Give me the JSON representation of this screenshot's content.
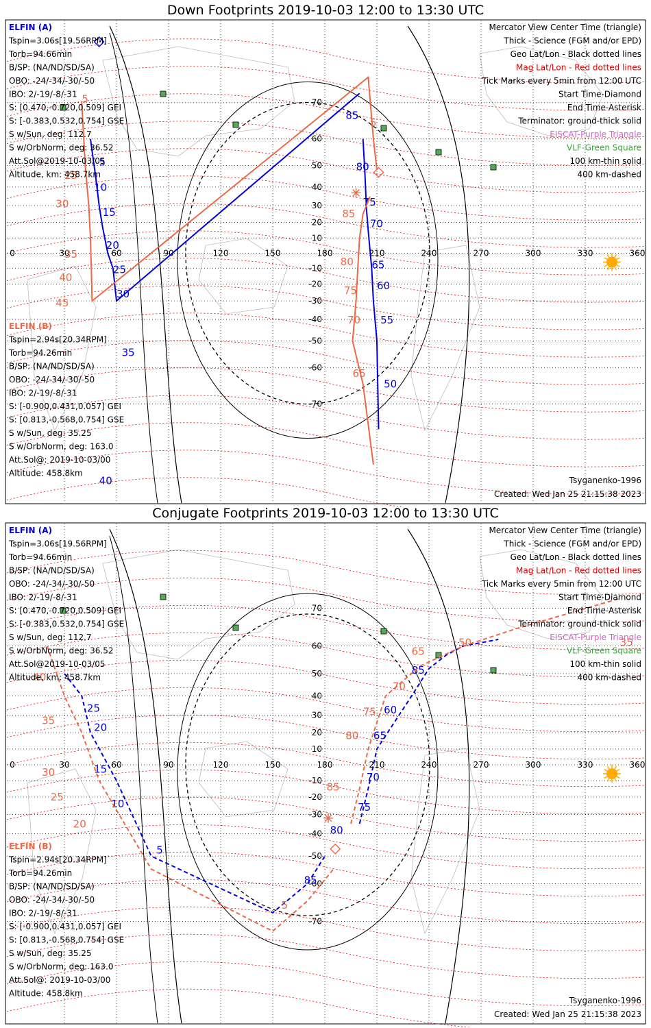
{
  "colors": {
    "a_blue": "#0000dd",
    "b_red": "#ee6644",
    "mag_red": "#dd0000",
    "eiscat": "#cc66cc",
    "vlf": "#33aa33",
    "sun": "#ffaa00"
  },
  "common": {
    "lon_ticks": [
      "0",
      "30",
      "60",
      "90",
      "120",
      "150",
      "180",
      "210",
      "240",
      "270",
      "300",
      "330",
      "360"
    ],
    "lat_ticks": [
      "70",
      "60",
      "50",
      "40",
      "30",
      "20",
      "10",
      "-10",
      "-20",
      "-30",
      "-40",
      "-50",
      "-60",
      "-70"
    ],
    "legend": [
      "Mercator View Center Time (triangle)",
      "Thick - Science (FGM and/or EPD)",
      "Geo Lat/Lon - Black dotted lines",
      "Mag Lat/Lon - Red dotted lines",
      "Tick Marks every 5min from 12:00 UTC",
      "Start Time-Diamond",
      "End Time-Asterisk",
      "Terminator: ground-thick solid",
      "EISCAT-Purple Triangle",
      "VLF-Green Square",
      "100 km-thin solid",
      "400 km-dashed"
    ],
    "a_block": [
      "ELFIN (A)",
      "Tspin=3.06s[19.56RPM]",
      "Torb=94.66min",
      "B/SP: (NA/ND/SD/SA)",
      "OBO: -24/-34/-30/-50",
      "IBO: 2/-19/-8/-31",
      "S: [0.470,-0.720,0.509] GEI",
      "S: [-0.383,0.532,0.754] GSE",
      "S w/Sun, deg: 112.7",
      "S w/OrbNorm, deg: 36.52",
      "Att.Sol@2019-10-03/05",
      "Altitude, km: 458.7km"
    ],
    "b_block": [
      "ELFIN (B)",
      "Tspin=2.94s[20.34RPM]",
      "Torb=94.26min",
      "B/SP: (NA/ND/SD/SA)",
      "OBO: -24/-34/-30/-50",
      "IBO: 2/-19/-8/-31",
      "S: [-0.900,0.431,0.057] GEI",
      "S: [0.813,-0.568,0.754] GSE",
      "S w/Sun, deg: 35.25",
      "S w/OrbNorm, deg: 163.0",
      "Att.Sol@: 2019-10-03/00",
      "Altitude: 458.8km"
    ],
    "model": "Tsyganenko-1996",
    "created": "Created: Wed Jan 25 21:15:38 2023"
  },
  "chart_data": [
    {
      "type": "scatter",
      "title": "Down Footprints 2019-10-03 12:00 to 13:30 UTC",
      "xlim": [
        0,
        360
      ],
      "ylim": [
        -80,
        80
      ],
      "series": [
        {
          "name": "ELFIN (A)",
          "color": "#0000dd",
          "lon": [
            45,
            48,
            50,
            52,
            55,
            58,
            60,
            200,
            202,
            203,
            204,
            205,
            207,
            208,
            210,
            211
          ],
          "lat": [
            60,
            45,
            30,
            17,
            0,
            -10,
            -30,
            72,
            60,
            48,
            28,
            15,
            -10,
            -30,
            -50,
            -75
          ],
          "ticks": [
            {
              "t": "5",
              "lon": 50,
              "lat": 50
            },
            {
              "t": "10",
              "lon": 47,
              "lat": 38
            },
            {
              "t": "15",
              "lon": 52,
              "lat": 24
            },
            {
              "t": "20",
              "lon": 54,
              "lat": 3
            },
            {
              "t": "25",
              "lon": 58,
              "lat": -13
            },
            {
              "t": "30",
              "lon": 60,
              "lat": -28
            },
            {
              "t": "35",
              "lon": 63,
              "lat": -56
            },
            {
              "t": "40",
              "lon": 50,
              "lat": -82
            },
            {
              "t": "85",
              "lon": 192,
              "lat": 66
            },
            {
              "t": "80",
              "lon": 198,
              "lat": 48
            },
            {
              "t": "75",
              "lon": 202,
              "lat": 30
            },
            {
              "t": "70",
              "lon": 206,
              "lat": 17
            },
            {
              "t": "65",
              "lon": 207,
              "lat": -10
            },
            {
              "t": "60",
              "lon": 210,
              "lat": -23
            },
            {
              "t": "55",
              "lon": 212,
              "lat": -42
            },
            {
              "t": "50",
              "lon": 214,
              "lat": -66
            }
          ]
        },
        {
          "name": "ELFIN (B)",
          "color": "#ee6644",
          "lon": [
            40,
            42,
            44,
            45,
            46,
            205,
            208,
            210,
            206,
            202,
            200,
            199,
            198,
            196,
            202,
            208
          ],
          "lat": [
            70,
            50,
            30,
            10,
            -30,
            75,
            60,
            48,
            35,
            25,
            10,
            -10,
            -30,
            -50,
            -65,
            -80
          ],
          "ticks": [
            {
              "t": "5",
              "lon": 40,
              "lat": 70
            },
            {
              "t": "25",
              "lon": 30,
              "lat": 44
            },
            {
              "t": "30",
              "lon": 25,
              "lat": 29
            },
            {
              "t": "35",
              "lon": 30,
              "lat": -3
            },
            {
              "t": "40",
              "lon": 27,
              "lat": -18
            },
            {
              "t": "45",
              "lon": 25,
              "lat": -33
            },
            {
              "t": "5",
              "lon": 206,
              "lat": 64
            },
            {
              "t": "85",
              "lon": 190,
              "lat": 23
            },
            {
              "t": "80",
              "lon": 189,
              "lat": -8
            },
            {
              "t": "75",
              "lon": 191,
              "lat": -26
            },
            {
              "t": "70",
              "lon": 193,
              "lat": -42
            },
            {
              "t": "65",
              "lon": 196,
              "lat": -63
            }
          ]
        }
      ],
      "start": [
        {
          "series": "A",
          "lon": 50,
          "lat": 80
        },
        {
          "series": "B",
          "lon": 211,
          "lat": 47
        }
      ],
      "end": [
        {
          "series": "B",
          "lon": 198,
          "lat": 37
        }
      ]
    },
    {
      "type": "scatter",
      "title": "Conjugate Footprints 2019-10-03 12:00 to 13:30 UTC",
      "xlim": [
        0,
        360
      ],
      "ylim": [
        -80,
        80
      ],
      "series": [
        {
          "name": "ELFIN (A)",
          "color": "#0000dd",
          "lon": [
            30,
            40,
            45,
            60,
            80,
            150,
            170,
            180,
            200,
            205,
            210,
            230,
            240,
            250,
            260,
            280
          ],
          "lat": [
            50,
            40,
            20,
            -10,
            -50,
            -68,
            -60,
            -50,
            -35,
            -15,
            10,
            40,
            52,
            57,
            60,
            62
          ],
          "ticks": [
            {
              "t": "25",
              "lon": 43,
              "lat": 32
            },
            {
              "t": "20",
              "lon": 47,
              "lat": 21
            },
            {
              "t": "15",
              "lon": 47,
              "lat": -5
            },
            {
              "t": "10",
              "lon": 57,
              "lat": -26
            },
            {
              "t": "5",
              "lon": 83,
              "lat": -49
            },
            {
              "t": "85",
              "lon": 230,
              "lat": 50
            },
            {
              "t": "60",
              "lon": 214,
              "lat": 31
            },
            {
              "t": "65",
              "lon": 208,
              "lat": 16
            },
            {
              "t": "70",
              "lon": 204,
              "lat": -10
            },
            {
              "t": "75",
              "lon": 199,
              "lat": -28
            },
            {
              "t": "80",
              "lon": 183,
              "lat": -40
            },
            {
              "t": "85",
              "lon": 168,
              "lat": -60
            }
          ]
        },
        {
          "name": "ELFIN (B)",
          "color": "#ee6644",
          "lon": [
            20,
            30,
            40,
            50,
            80,
            150,
            170,
            185,
            195,
            200,
            205,
            215,
            235,
            260,
            290,
            350
          ],
          "lat": [
            60,
            40,
            20,
            -10,
            -55,
            -72,
            -65,
            -55,
            -35,
            -15,
            10,
            40,
            53,
            60,
            65,
            72
          ],
          "ticks": [
            {
              "t": "40",
              "lon": 12,
              "lat": 47
            },
            {
              "t": "35",
              "lon": 17,
              "lat": 25
            },
            {
              "t": "30",
              "lon": 17,
              "lat": -7
            },
            {
              "t": "25",
              "lon": 22,
              "lat": -22
            },
            {
              "t": "20",
              "lon": 35,
              "lat": -37
            },
            {
              "t": "5",
              "lon": 155,
              "lat": -67
            },
            {
              "t": "65",
              "lon": 230,
              "lat": 57
            },
            {
              "t": "50",
              "lon": 257,
              "lat": 60
            },
            {
              "t": "35",
              "lon": 350,
              "lat": 60
            },
            {
              "t": "70",
              "lon": 219,
              "lat": 43
            },
            {
              "t": "75",
              "lon": 202,
              "lat": 30
            },
            {
              "t": "80",
              "lon": 192,
              "lat": 16
            },
            {
              "t": "85",
              "lon": 181,
              "lat": -16
            }
          ]
        }
      ],
      "start": [
        {
          "series": "B",
          "lon": 186,
          "lat": -47
        }
      ],
      "end": [
        {
          "series": "B",
          "lon": 182,
          "lat": -32
        }
      ]
    }
  ]
}
